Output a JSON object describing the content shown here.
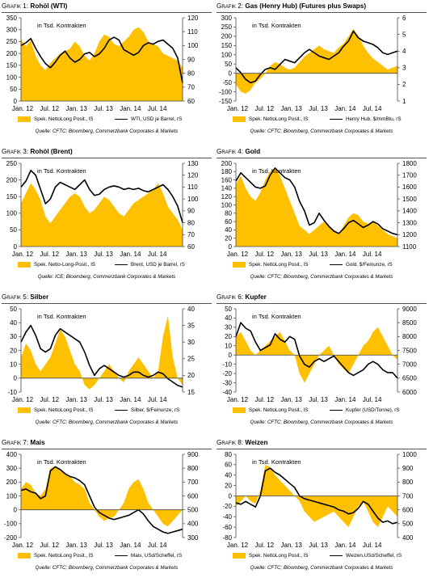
{
  "colors": {
    "area": "#FFC000",
    "line": "#000000",
    "axis": "#444444"
  },
  "chart_data": [
    {
      "type": "area",
      "number": "Grafik 1:",
      "title": "Rohöl (WTI)",
      "annotation": "in Tsd. Kontrakten",
      "xlabels": [
        "Jan. 12",
        "Jul. 12",
        "Jan. 13",
        "Jul. 13",
        "Jan. 14",
        "Jul. 14"
      ],
      "yleft": {
        "min": 0,
        "max": 350,
        "ticks": [
          0,
          50,
          100,
          150,
          200,
          250,
          300,
          350
        ]
      },
      "yright": {
        "min": 60,
        "max": 120,
        "ticks": [
          60,
          70,
          80,
          90,
          100,
          110,
          120
        ]
      },
      "series": [
        {
          "name": "Spek. NettoLong Posit., lS",
          "axis": "left",
          "kind": "area",
          "values": [
            260,
            230,
            255,
            190,
            150,
            130,
            160,
            180,
            200,
            210,
            220,
            250,
            230,
            190,
            170,
            200,
            250,
            280,
            270,
            240,
            230,
            250,
            270,
            300,
            310,
            290,
            250,
            240,
            230,
            200,
            190,
            180,
            170,
            140
          ]
        },
        {
          "name": "WTI, USD je Barrel, rS",
          "axis": "right",
          "kind": "line",
          "values": [
            100,
            102,
            105,
            98,
            92,
            87,
            84,
            88,
            93,
            96,
            91,
            88,
            90,
            94,
            95,
            92,
            94,
            98,
            104,
            106,
            104,
            97,
            95,
            93,
            95,
            100,
            102,
            101,
            103,
            104,
            101,
            98,
            91,
            73
          ]
        }
      ],
      "source": "Quelle: CFTC; Bloomberg, Commerzbank Corporates & Markets"
    },
    {
      "type": "area",
      "number": "Grafik 2:",
      "title": "Gas (Henry Hub) (Futures plus Swaps)",
      "annotation": "in Tsd. Kontrakten",
      "xlabels": [
        "Jan. 12",
        "Jul. 12",
        "Jan. 13",
        "Jul. 13",
        "Jan. 14",
        "Jul. 14"
      ],
      "yleft": {
        "min": -150,
        "max": 300,
        "ticks": [
          -150,
          -100,
          -50,
          0,
          50,
          100,
          150,
          200,
          250,
          300
        ]
      },
      "yright": {
        "min": 1.0,
        "max": 6.0,
        "ticks": [
          1.0,
          2.0,
          3.0,
          4.0,
          5.0,
          6.0
        ]
      },
      "series": [
        {
          "name": "Spek. NettoLong Posit., lS",
          "axis": "left",
          "kind": "area",
          "values": [
            -60,
            -100,
            -110,
            -90,
            -50,
            -30,
            0,
            40,
            60,
            50,
            30,
            20,
            30,
            60,
            90,
            110,
            130,
            150,
            130,
            120,
            110,
            140,
            160,
            200,
            240,
            200,
            150,
            110,
            80,
            60,
            40,
            20,
            30,
            40
          ]
        },
        {
          "name": "Henry Hub, $/mmBtu, rS",
          "axis": "right",
          "kind": "line",
          "values": [
            3.0,
            2.7,
            2.3,
            2.1,
            2.2,
            2.6,
            2.9,
            3.0,
            2.9,
            3.2,
            3.5,
            3.4,
            3.3,
            3.6,
            3.9,
            4.1,
            3.9,
            3.7,
            3.6,
            3.5,
            3.7,
            3.9,
            4.3,
            4.6,
            5.2,
            4.8,
            4.6,
            4.5,
            4.4,
            4.2,
            3.9,
            3.8,
            3.9,
            4.0
          ]
        }
      ],
      "source": "Quelle: CFTC; Bloomberg, Commerzbank Corporates & Markets"
    },
    {
      "type": "area",
      "number": "Grafik 3:",
      "title": "Rohöl (Brent)",
      "annotation": "in Tsd. Kontrakten",
      "xlabels": [
        "Jan. 12",
        "Jul. 12",
        "Jan. 13",
        "Jul. 13",
        "Jan. 14",
        "Jul. 14"
      ],
      "yleft": {
        "min": 0,
        "max": 250,
        "ticks": [
          0,
          50,
          100,
          150,
          200,
          250
        ]
      },
      "yright": {
        "min": 60,
        "max": 130,
        "ticks": [
          60,
          70,
          80,
          90,
          100,
          110,
          120,
          130
        ]
      },
      "series": [
        {
          "name": "Spek. Netto-Long-Posit., lS",
          "axis": "left",
          "kind": "area",
          "values": [
            130,
            160,
            190,
            170,
            140,
            90,
            70,
            90,
            110,
            130,
            150,
            160,
            150,
            120,
            100,
            110,
            130,
            150,
            140,
            120,
            100,
            90,
            110,
            130,
            140,
            150,
            160,
            170,
            190,
            160,
            120,
            100,
            80,
            50
          ]
        },
        {
          "name": "Brent, USD je Barrel, rS",
          "axis": "right",
          "kind": "line",
          "values": [
            110,
            115,
            124,
            120,
            108,
            96,
            100,
            110,
            114,
            112,
            110,
            108,
            112,
            116,
            108,
            103,
            104,
            108,
            110,
            111,
            110,
            108,
            109,
            108,
            109,
            107,
            106,
            108,
            110,
            112,
            108,
            102,
            94,
            80
          ]
        }
      ],
      "source": "Quelle: ICE; Bloomberg, Commerzbank Corporates & Markets"
    },
    {
      "type": "area",
      "number": "Grafik 4:",
      "title": "Gold",
      "annotation": "in Tsd. Kontrakten",
      "xlabels": [
        "Jan. 12",
        "Jul. 12",
        "Jan. 13",
        "Jul. 13",
        "Jan. 14",
        "Jul. 14"
      ],
      "yleft": {
        "min": 0,
        "max": 200,
        "ticks": [
          0,
          20,
          40,
          60,
          80,
          100,
          120,
          140,
          160,
          180,
          200
        ]
      },
      "yright": {
        "min": 1100,
        "max": 1800,
        "ticks": [
          1100,
          1200,
          1300,
          1400,
          1500,
          1600,
          1700,
          1800
        ]
      },
      "series": [
        {
          "name": "Spek. NettoLong Posit., lS",
          "axis": "left",
          "kind": "area",
          "values": [
            150,
            170,
            140,
            120,
            110,
            130,
            160,
            180,
            190,
            170,
            140,
            110,
            80,
            50,
            40,
            30,
            40,
            50,
            60,
            50,
            40,
            30,
            50,
            70,
            80,
            75,
            60,
            55,
            60,
            50,
            40,
            30,
            25,
            20
          ]
        },
        {
          "name": "Gold, $/Feinunze, rS",
          "axis": "right",
          "kind": "line",
          "values": [
            1650,
            1720,
            1680,
            1640,
            1600,
            1590,
            1610,
            1700,
            1760,
            1720,
            1680,
            1660,
            1600,
            1480,
            1400,
            1280,
            1300,
            1380,
            1320,
            1270,
            1230,
            1210,
            1250,
            1300,
            1320,
            1290,
            1260,
            1280,
            1310,
            1290,
            1250,
            1230,
            1210,
            1200
          ]
        }
      ],
      "source": "Quelle: CFTC; Bloomberg, Commerzbank Corporates & Markets"
    },
    {
      "type": "area",
      "number": "Grafik 5:",
      "title": "Silber",
      "annotation": "in Tsd. Kontrakten",
      "xlabels": [
        "Jan. 12",
        "Jul. 12",
        "Jan. 13",
        "Jul. 13",
        "Jan. 14",
        "Jul. 14"
      ],
      "yleft": {
        "min": -10,
        "max": 50,
        "ticks": [
          -10,
          0,
          10,
          20,
          30,
          40,
          50
        ]
      },
      "yright": {
        "min": 15,
        "max": 40,
        "ticks": [
          15,
          20,
          25,
          30,
          35,
          40
        ]
      },
      "series": [
        {
          "name": "Spek. NettoLong Posit., lS",
          "axis": "left",
          "kind": "area",
          "values": [
            15,
            25,
            20,
            10,
            5,
            10,
            15,
            25,
            35,
            30,
            20,
            10,
            5,
            -5,
            -8,
            -5,
            0,
            5,
            10,
            5,
            0,
            -3,
            5,
            10,
            15,
            10,
            5,
            0,
            5,
            30,
            45,
            15,
            0,
            -5
          ]
        },
        {
          "name": "Silber, $/Feinunze, rS",
          "axis": "right",
          "kind": "line",
          "values": [
            30,
            33,
            35,
            32,
            28,
            27,
            28,
            32,
            34,
            33,
            32,
            31,
            30,
            27,
            23,
            20,
            22,
            23,
            22,
            21,
            20,
            19.5,
            20,
            21,
            21,
            20,
            19.5,
            20,
            21,
            20.5,
            19,
            18,
            17,
            16.5
          ]
        }
      ],
      "source": "Quelle: CFTC; Bloomberg, Commerzbank Corporates & Markets"
    },
    {
      "type": "area",
      "number": "Grafik 6:",
      "title": "Kupfer",
      "annotation": "in Tsd. Kontrakten",
      "xlabels": [
        "Jan. 12",
        "Jul. 12",
        "Jan. 13",
        "Jul. 13",
        "Jan. 14",
        "Jul. 14"
      ],
      "yleft": {
        "min": -40,
        "max": 50,
        "ticks": [
          -40,
          -30,
          -20,
          -10,
          0,
          10,
          20,
          30,
          40,
          50
        ]
      },
      "yright": {
        "min": 6000,
        "max": 9000,
        "ticks": [
          6000,
          6500,
          7000,
          7500,
          8000,
          8500,
          9000
        ]
      },
      "series": [
        {
          "name": "Spek. NettoLong Posit., lS",
          "axis": "left",
          "kind": "area",
          "values": [
            20,
            25,
            15,
            5,
            0,
            5,
            10,
            15,
            20,
            25,
            15,
            5,
            0,
            -20,
            -30,
            -20,
            -10,
            0,
            5,
            10,
            0,
            -10,
            -15,
            -20,
            -10,
            0,
            10,
            15,
            25,
            30,
            20,
            10,
            0,
            -5
          ]
        },
        {
          "name": "Kupfer (USD/Tonne), rS",
          "axis": "right",
          "kind": "line",
          "values": [
            8000,
            8500,
            8300,
            8200,
            7800,
            7500,
            7600,
            7700,
            8100,
            7900,
            7800,
            8000,
            7900,
            7300,
            7000,
            6900,
            7100,
            7200,
            7100,
            7200,
            7300,
            7100,
            6900,
            6700,
            6600,
            6700,
            6800,
            7000,
            7100,
            7000,
            6800,
            6700,
            6700,
            6500
          ]
        }
      ],
      "source": "Quelle: CFTC; Bloomberg, Commerzbank Corporates & Markets"
    },
    {
      "type": "area",
      "number": "Grafik 7:",
      "title": "Mais",
      "annotation": "in Tsd. Kontrakten",
      "xlabels": [
        "Jan. 12",
        "Jul. 12",
        "Jan. 13",
        "Jul. 13",
        "Jan. 14",
        "Jul. 14"
      ],
      "yleft": {
        "min": -200,
        "max": 400,
        "ticks": [
          -200,
          -100,
          0,
          100,
          200,
          300,
          400
        ]
      },
      "yright": {
        "min": 300,
        "max": 900,
        "ticks": [
          300,
          400,
          500,
          600,
          700,
          800,
          900
        ]
      },
      "series": [
        {
          "name": "Spek. NettoLong Posit., lS",
          "axis": "left",
          "kind": "area",
          "values": [
            150,
            200,
            180,
            120,
            100,
            150,
            300,
            310,
            280,
            260,
            240,
            200,
            180,
            150,
            50,
            0,
            -50,
            -80,
            -60,
            -50,
            0,
            50,
            150,
            200,
            220,
            150,
            50,
            0,
            -50,
            -100,
            -120,
            -80,
            -40,
            0
          ]
        },
        {
          "name": "Mais, USd/Scheffel, rS",
          "axis": "right",
          "kind": "line",
          "values": [
            640,
            650,
            630,
            620,
            580,
            600,
            780,
            810,
            790,
            760,
            740,
            730,
            710,
            680,
            600,
            520,
            480,
            460,
            440,
            430,
            440,
            450,
            460,
            480,
            500,
            470,
            420,
            380,
            360,
            340,
            330,
            340,
            350,
            360
          ]
        }
      ],
      "source": "Quelle: CFTC; Bloomberg, Commerzbank Corporates & Markets"
    },
    {
      "type": "area",
      "number": "Grafik 8:",
      "title": "Weizen",
      "annotation": "in Tsd. Kontrakten",
      "xlabels": [
        "Jan. 12",
        "Jul. 12",
        "Jan. 13",
        "Jul. 13",
        "Jan. 14",
        "Jul. 14"
      ],
      "yleft": {
        "min": -80,
        "max": 80,
        "ticks": [
          -80,
          -60,
          -40,
          -20,
          0,
          20,
          40,
          60,
          80
        ]
      },
      "yright": {
        "min": 400,
        "max": 1000,
        "ticks": [
          400,
          500,
          600,
          700,
          800,
          900,
          1000
        ]
      },
      "series": [
        {
          "name": "Spek. NettoLong Posit., lS",
          "axis": "left",
          "kind": "area",
          "values": [
            -20,
            -10,
            0,
            -10,
            -15,
            10,
            60,
            55,
            40,
            30,
            20,
            10,
            0,
            -10,
            -30,
            -40,
            -50,
            -45,
            -40,
            -35,
            -30,
            -40,
            -50,
            -60,
            -40,
            -20,
            -10,
            -30,
            -50,
            -60,
            -40,
            -20,
            -30,
            -40
          ]
        },
        {
          "name": "Weizen,USd/Scheffel, rS",
          "axis": "right",
          "kind": "line",
          "values": [
            650,
            640,
            660,
            640,
            620,
            700,
            880,
            900,
            870,
            850,
            820,
            790,
            760,
            700,
            680,
            670,
            660,
            650,
            640,
            630,
            620,
            600,
            590,
            570,
            580,
            610,
            660,
            640,
            590,
            540,
            510,
            520,
            500,
            510
          ]
        }
      ],
      "source": "Quelle: CFTC; Bloomberg, Commerzbank Corporates & Markets"
    }
  ]
}
